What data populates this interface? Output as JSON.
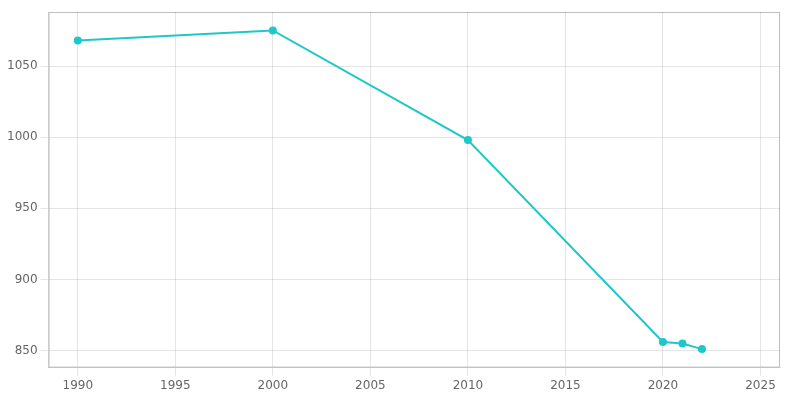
{
  "chart_data": {
    "type": "line",
    "x": [
      1990,
      2000,
      2010,
      2020,
      2021,
      2022
    ],
    "values": [
      1068,
      1075,
      998,
      856,
      855,
      851
    ],
    "color": "#1DC8C8",
    "marker": "circle",
    "xlim": [
      1988.5,
      2026
    ],
    "ylim": [
      838,
      1088
    ],
    "xticks": [
      1990,
      1995,
      2000,
      2005,
      2010,
      2015,
      2020,
      2025
    ],
    "yticks": [
      850,
      900,
      950,
      1000,
      1050
    ],
    "grid": true
  }
}
